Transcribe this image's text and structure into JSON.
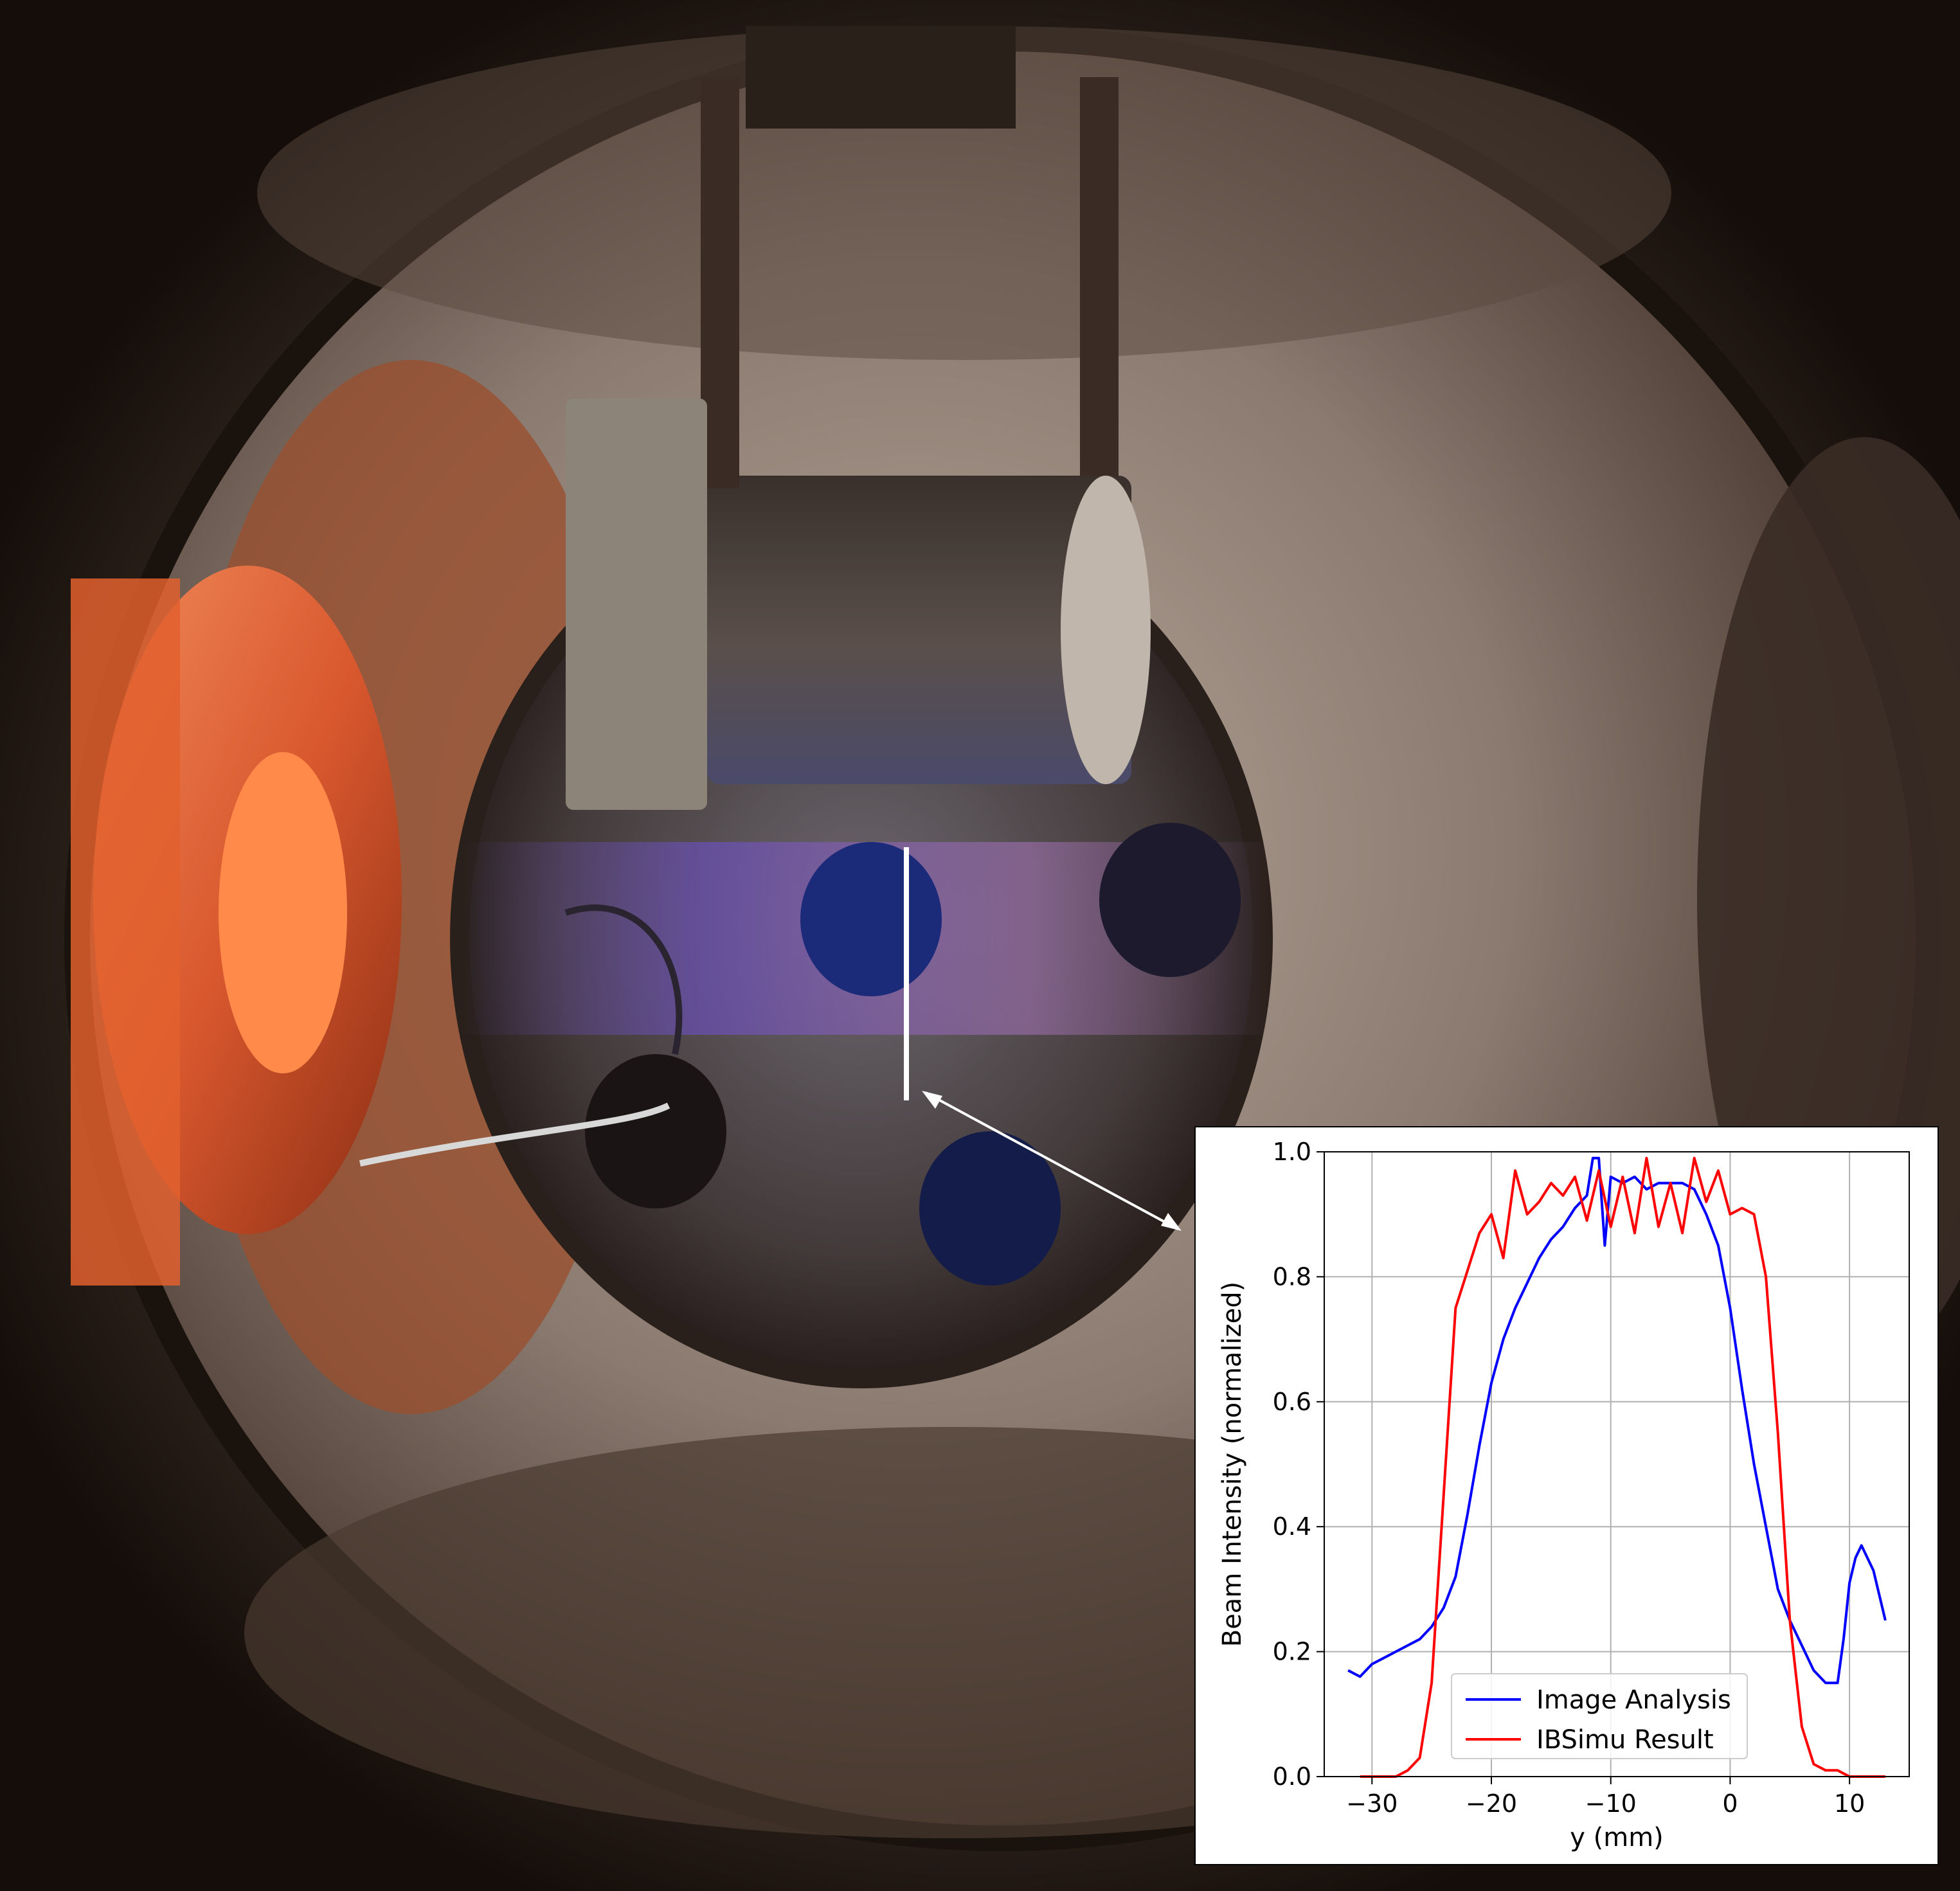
{
  "photo": {
    "colors": {
      "copper": "#d9582e",
      "metal": "#8a7a70",
      "glow": "#6a4fb8",
      "darkness": "#140d09"
    },
    "annotation": {
      "marker": "white-line",
      "pointer": "double-arrow"
    }
  },
  "chart_data": {
    "type": "line",
    "title": "",
    "xlabel": "y (mm)",
    "ylabel": "Beam Intensity (normalized)",
    "xlim": [
      -34,
      15
    ],
    "ylim": [
      0,
      1.0
    ],
    "xticks": [
      -30,
      -20,
      -10,
      0,
      10
    ],
    "xtick_labels": [
      "−30",
      "−20",
      "−10",
      "0",
      "10"
    ],
    "yticks": [
      0.0,
      0.2,
      0.4,
      0.6,
      0.8,
      1.0
    ],
    "ytick_labels": [
      "0.0",
      "0.2",
      "0.4",
      "0.6",
      "0.8",
      "1.0"
    ],
    "grid": true,
    "legend": "lower-center",
    "series": [
      {
        "name": "Image Analysis",
        "color": "#0000ff",
        "x": [
          -32,
          -31,
          -30,
          -29,
          -28,
          -27,
          -26,
          -25,
          -24,
          -23,
          -22,
          -21,
          -20,
          -19,
          -18,
          -17,
          -16,
          -15,
          -14,
          -13,
          -12,
          -11.5,
          -11,
          -10.5,
          -10,
          -9,
          -8,
          -7,
          -6,
          -5,
          -4,
          -3,
          -2,
          -1,
          0,
          1,
          2,
          3,
          4,
          5,
          6,
          7,
          8,
          9,
          9.5,
          10,
          10.5,
          11,
          12,
          13
        ],
        "y": [
          0.17,
          0.16,
          0.18,
          0.19,
          0.2,
          0.21,
          0.22,
          0.24,
          0.27,
          0.32,
          0.42,
          0.53,
          0.63,
          0.7,
          0.75,
          0.79,
          0.83,
          0.86,
          0.88,
          0.91,
          0.93,
          0.99,
          0.99,
          0.85,
          0.96,
          0.95,
          0.96,
          0.94,
          0.95,
          0.95,
          0.95,
          0.94,
          0.9,
          0.85,
          0.75,
          0.62,
          0.5,
          0.4,
          0.3,
          0.25,
          0.21,
          0.17,
          0.15,
          0.15,
          0.22,
          0.31,
          0.35,
          0.37,
          0.33,
          0.25
        ]
      },
      {
        "name": "IBSimu Result",
        "color": "#ff0000",
        "x": [
          -31,
          -29,
          -28,
          -27,
          -26,
          -25,
          -24,
          -23,
          -22,
          -21,
          -20,
          -19,
          -18,
          -17,
          -16,
          -15,
          -14,
          -13,
          -12,
          -11,
          -10,
          -9,
          -8,
          -7,
          -6,
          -5,
          -4,
          -3,
          -2,
          -1,
          0,
          1,
          2,
          3,
          4,
          5,
          6,
          7,
          8,
          9,
          10,
          11,
          13
        ],
        "y": [
          0.0,
          0.0,
          0.0,
          0.01,
          0.03,
          0.15,
          0.45,
          0.75,
          0.81,
          0.87,
          0.9,
          0.83,
          0.97,
          0.9,
          0.92,
          0.95,
          0.93,
          0.96,
          0.89,
          0.97,
          0.88,
          0.96,
          0.87,
          0.99,
          0.88,
          0.95,
          0.87,
          0.99,
          0.92,
          0.97,
          0.9,
          0.91,
          0.9,
          0.8,
          0.55,
          0.25,
          0.08,
          0.02,
          0.01,
          0.01,
          0.0,
          0.0,
          0.0
        ]
      }
    ]
  }
}
